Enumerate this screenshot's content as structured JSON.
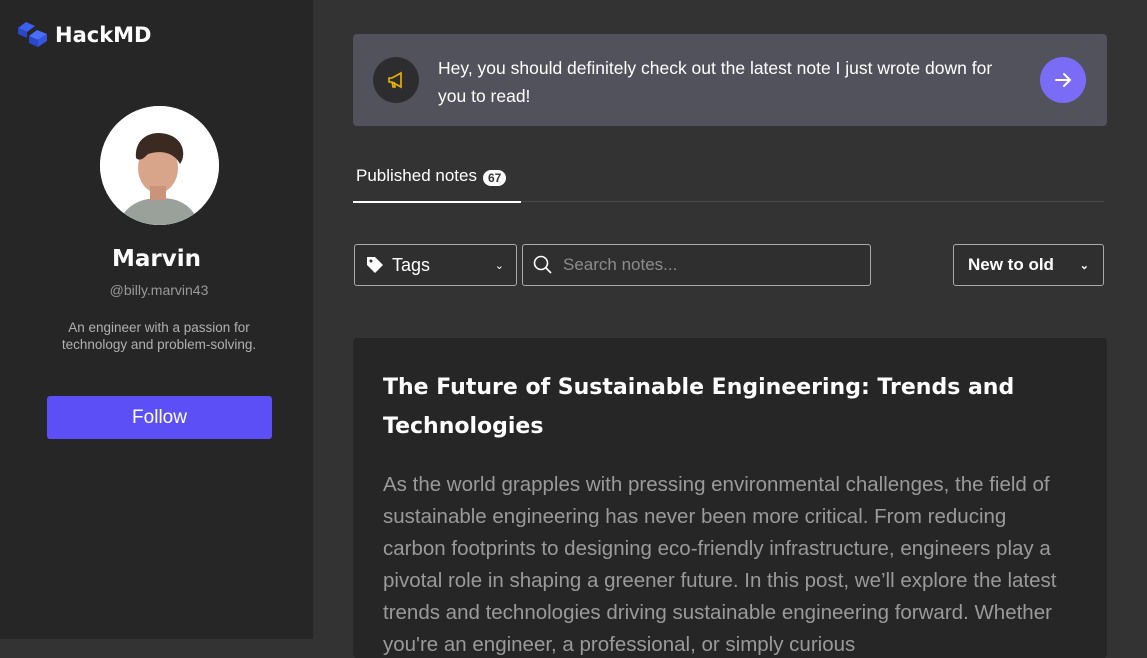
{
  "app": {
    "name": "HackMD",
    "brand_color": "#5b4ff5"
  },
  "profile": {
    "name": "Marvin",
    "handle": "@billy.marvin43",
    "bio": "An engineer with a passion for technology and problem-solving.",
    "follow_label": "Follow"
  },
  "banner": {
    "icon": "megaphone-icon",
    "text": "Hey, you should definitely check out the latest note I just wrote down for you to read!",
    "action_icon": "arrow-right-icon"
  },
  "tabs": [
    {
      "label": "Published notes",
      "count": "67",
      "active": true
    }
  ],
  "filters": {
    "tags_label": "Tags",
    "search_placeholder": "Search notes...",
    "sort_value": "New to old"
  },
  "notes": [
    {
      "title": "The Future of Sustainable Engineering: Trends and Technologies",
      "excerpt": "As the world grapples with pressing environmental challenges, the field of sustainable engineering has never been more critical. From reducing carbon footprints to designing eco-friendly infrastructure, engineers play a pivotal role in shaping a greener future. In this post, we’ll explore the latest trends and technologies driving sustainable engineering forward. Whether you're an engineer, a professional, or simply curious"
    }
  ]
}
